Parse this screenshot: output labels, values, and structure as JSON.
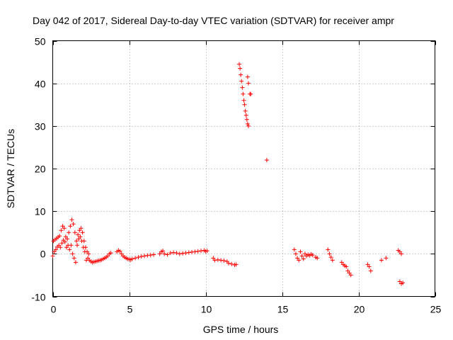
{
  "chart_data": {
    "type": "scatter",
    "title": "Day 042 of 2017, Sidereal Day-to-day VTEC variation (SDTVAR) for receiver ampr",
    "xlabel": "GPS time / hours",
    "ylabel": "SDTVAR / TECUs",
    "xlim": [
      0,
      25
    ],
    "ylim": [
      -10,
      50
    ],
    "xticks": [
      0,
      5,
      10,
      15,
      20,
      25
    ],
    "yticks": [
      -10,
      0,
      10,
      20,
      30,
      40,
      50
    ],
    "xtick_labels": [
      "0",
      "5",
      "10",
      "15",
      "20",
      "25"
    ],
    "ytick_labels": [
      "-10",
      "0",
      "10",
      "20",
      "30",
      "40",
      "50"
    ],
    "grid": true,
    "marker": "+",
    "color": "#ff0000",
    "series": [
      {
        "name": "SDTVAR",
        "points": [
          [
            0.0,
            -0.5
          ],
          [
            0.05,
            3.0
          ],
          [
            0.1,
            0.5
          ],
          [
            0.15,
            3.3
          ],
          [
            0.2,
            1.0
          ],
          [
            0.25,
            3.6
          ],
          [
            0.3,
            1.6
          ],
          [
            0.35,
            3.9
          ],
          [
            0.4,
            2.0
          ],
          [
            0.45,
            4.2
          ],
          [
            0.5,
            1.5
          ],
          [
            0.55,
            5.5
          ],
          [
            0.6,
            2.5
          ],
          [
            0.65,
            6.5
          ],
          [
            0.7,
            3.2
          ],
          [
            0.75,
            6.0
          ],
          [
            0.8,
            2.8
          ],
          [
            0.85,
            4.0
          ],
          [
            0.9,
            1.5
          ],
          [
            0.95,
            3.5
          ],
          [
            1.0,
            2.0
          ],
          [
            1.05,
            5.0
          ],
          [
            1.1,
            1.0
          ],
          [
            1.15,
            6.5
          ],
          [
            1.2,
            2.0
          ],
          [
            1.25,
            8.0
          ],
          [
            1.3,
            0.0
          ],
          [
            1.35,
            7.0
          ],
          [
            1.4,
            -1.0
          ],
          [
            1.45,
            5.0
          ],
          [
            1.5,
            -2.0
          ],
          [
            1.55,
            3.0
          ],
          [
            1.6,
            2.0
          ],
          [
            1.65,
            4.5
          ],
          [
            1.7,
            3.5
          ],
          [
            1.75,
            5.5
          ],
          [
            1.8,
            4.0
          ],
          [
            1.85,
            6.0
          ],
          [
            1.9,
            3.0
          ],
          [
            1.95,
            5.0
          ],
          [
            2.0,
            1.5
          ],
          [
            2.05,
            3.0
          ],
          [
            2.1,
            0.5
          ],
          [
            2.15,
            1.5
          ],
          [
            2.2,
            -1.5
          ],
          [
            2.25,
            0.5
          ],
          [
            2.3,
            -1.0
          ],
          [
            2.35,
            0.0
          ],
          [
            2.4,
            -1.5
          ],
          [
            2.5,
            -1.8
          ],
          [
            2.6,
            -2.0
          ],
          [
            2.7,
            -1.9
          ],
          [
            2.8,
            -1.8
          ],
          [
            2.9,
            -1.7
          ],
          [
            3.0,
            -1.6
          ],
          [
            3.1,
            -1.5
          ],
          [
            3.2,
            -1.4
          ],
          [
            3.3,
            -1.2
          ],
          [
            3.4,
            -1.0
          ],
          [
            3.5,
            -0.8
          ],
          [
            3.6,
            -0.5
          ],
          [
            3.7,
            0.0
          ],
          [
            3.8,
            0.2
          ],
          [
            4.2,
            0.5
          ],
          [
            4.3,
            0.8
          ],
          [
            4.4,
            0.6
          ],
          [
            4.5,
            0.0
          ],
          [
            4.6,
            -0.5
          ],
          [
            4.7,
            -0.8
          ],
          [
            4.8,
            -1.0
          ],
          [
            4.9,
            -1.2
          ],
          [
            5.0,
            -1.3
          ],
          [
            5.1,
            -1.4
          ],
          [
            5.2,
            -1.2
          ],
          [
            5.4,
            -1.0
          ],
          [
            5.6,
            -0.8
          ],
          [
            5.8,
            -0.6
          ],
          [
            6.0,
            -0.5
          ],
          [
            6.2,
            -0.4
          ],
          [
            6.4,
            -0.3
          ],
          [
            6.6,
            -0.2
          ],
          [
            7.0,
            0.0
          ],
          [
            7.1,
            0.5
          ],
          [
            7.2,
            0.7
          ],
          [
            7.3,
            0.0
          ],
          [
            7.5,
            -0.2
          ],
          [
            7.7,
            0.2
          ],
          [
            7.9,
            0.3
          ],
          [
            8.1,
            0.2
          ],
          [
            8.3,
            0.0
          ],
          [
            8.5,
            0.1
          ],
          [
            8.7,
            0.2
          ],
          [
            8.9,
            0.3
          ],
          [
            9.1,
            0.4
          ],
          [
            9.3,
            0.5
          ],
          [
            9.5,
            0.6
          ],
          [
            9.7,
            0.7
          ],
          [
            9.9,
            0.8
          ],
          [
            10.0,
            0.6
          ],
          [
            10.1,
            0.7
          ],
          [
            10.5,
            -1.0
          ],
          [
            10.6,
            -1.5
          ],
          [
            10.8,
            -1.4
          ],
          [
            11.0,
            -1.5
          ],
          [
            11.2,
            -1.6
          ],
          [
            11.4,
            -1.8
          ],
          [
            11.5,
            -2.2
          ],
          [
            11.7,
            -2.4
          ],
          [
            11.9,
            -2.6
          ],
          [
            12.0,
            -2.5
          ],
          [
            12.2,
            44.5
          ],
          [
            12.25,
            43.5
          ],
          [
            12.3,
            42.0
          ],
          [
            12.35,
            40.5
          ],
          [
            12.4,
            39.0
          ],
          [
            12.45,
            37.5
          ],
          [
            12.5,
            36.0
          ],
          [
            12.55,
            35.0
          ],
          [
            12.6,
            33.5
          ],
          [
            12.65,
            32.5
          ],
          [
            12.7,
            31.5
          ],
          [
            12.75,
            30.5
          ],
          [
            12.8,
            30.0
          ],
          [
            12.75,
            41.5
          ],
          [
            12.8,
            40.0
          ],
          [
            12.9,
            37.5
          ],
          [
            12.95,
            37.5
          ],
          [
            14.0,
            22.0
          ],
          [
            15.8,
            1.0
          ],
          [
            15.9,
            0.0
          ],
          [
            16.0,
            -1.0
          ],
          [
            16.1,
            -1.5
          ],
          [
            16.2,
            0.5
          ],
          [
            16.3,
            -0.5
          ],
          [
            16.4,
            -1.2
          ],
          [
            16.5,
            0.0
          ],
          [
            16.6,
            -0.5
          ],
          [
            16.7,
            -0.2
          ],
          [
            16.8,
            -0.4
          ],
          [
            16.9,
            -0.1
          ],
          [
            17.0,
            -0.3
          ],
          [
            17.2,
            -0.8
          ],
          [
            17.3,
            -1.0
          ],
          [
            18.0,
            1.0
          ],
          [
            18.1,
            0.0
          ],
          [
            18.2,
            -0.8
          ],
          [
            18.3,
            -1.5
          ],
          [
            18.9,
            -2.0
          ],
          [
            19.0,
            -2.5
          ],
          [
            19.1,
            -2.8
          ],
          [
            19.2,
            -3.0
          ],
          [
            19.3,
            -4.0
          ],
          [
            19.4,
            -4.5
          ],
          [
            19.5,
            -5.0
          ],
          [
            20.6,
            -2.5
          ],
          [
            20.7,
            -3.0
          ],
          [
            20.8,
            -4.0
          ],
          [
            21.5,
            -1.5
          ],
          [
            21.8,
            -1.0
          ],
          [
            22.6,
            0.8
          ],
          [
            22.7,
            0.5
          ],
          [
            22.8,
            0.0
          ],
          [
            22.7,
            -6.5
          ],
          [
            22.8,
            -7.0
          ],
          [
            22.9,
            -6.8
          ]
        ]
      }
    ]
  }
}
